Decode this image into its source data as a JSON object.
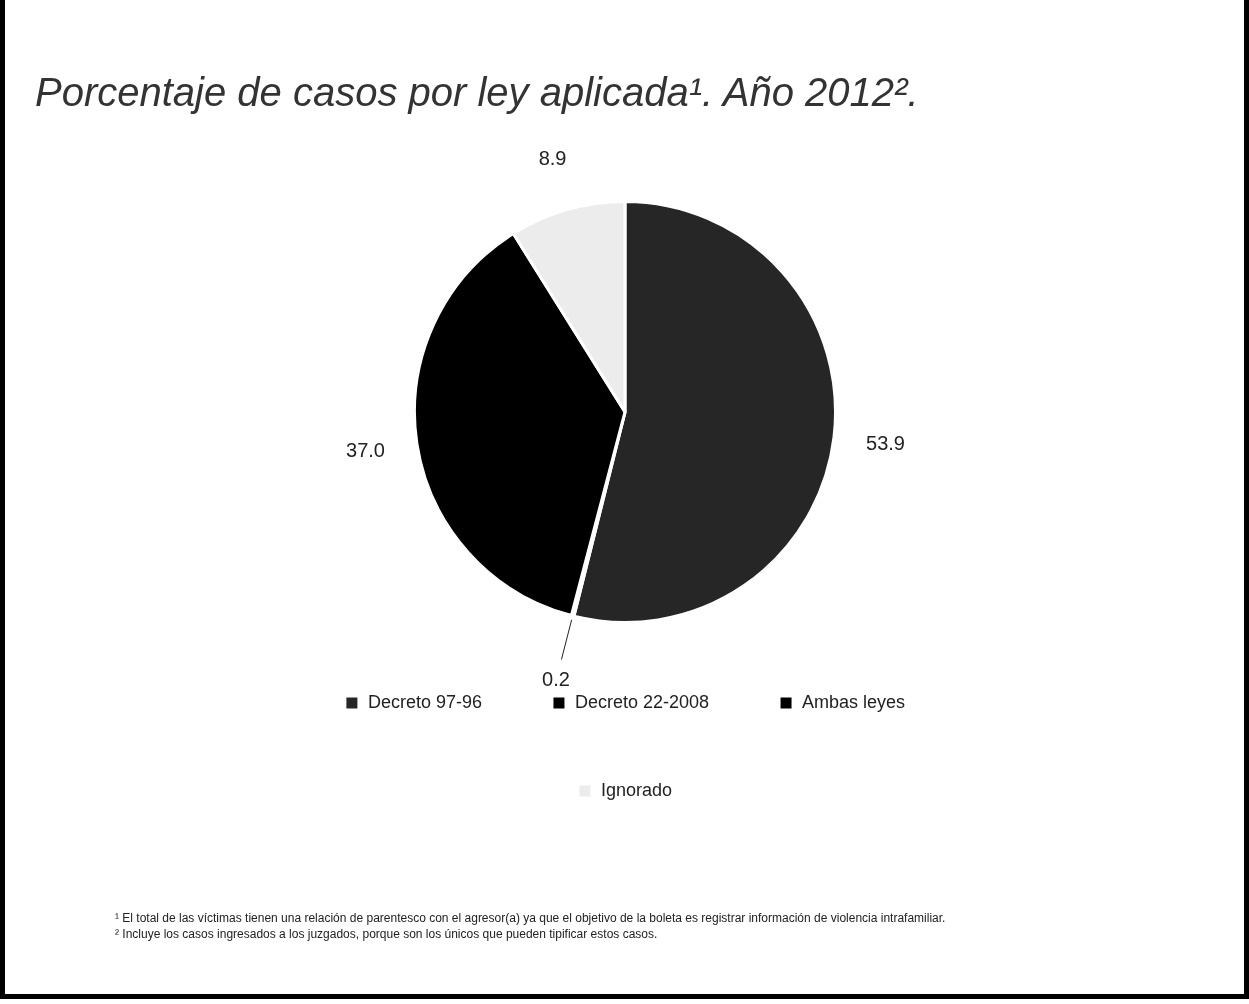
{
  "chart_data": {
    "type": "pie",
    "title": "Porcentaje de casos por ley aplicada¹. Año 2012².",
    "categories": [
      "Decreto 97-96",
      "Decreto 22-2008",
      "Ambas leyes",
      "Ignorado"
    ],
    "values": [
      53.9,
      0.2,
      37.0,
      8.9
    ],
    "value_labels": [
      "53.9",
      "0.2",
      "37.0",
      "8.9"
    ],
    "colors": [
      "#262626",
      "#000000",
      "#000000",
      "#ececec"
    ],
    "legend": "bottom",
    "annotations": [
      "¹ El total de las víctimas tienen una relación de parentesco con el agresor(a) ya que el objetivo de la boleta es registrar información de violencia intrafamiliar.",
      "² Incluye los casos ingresados a los juzgados, porque son los únicos que pueden tipificar estos casos."
    ]
  }
}
